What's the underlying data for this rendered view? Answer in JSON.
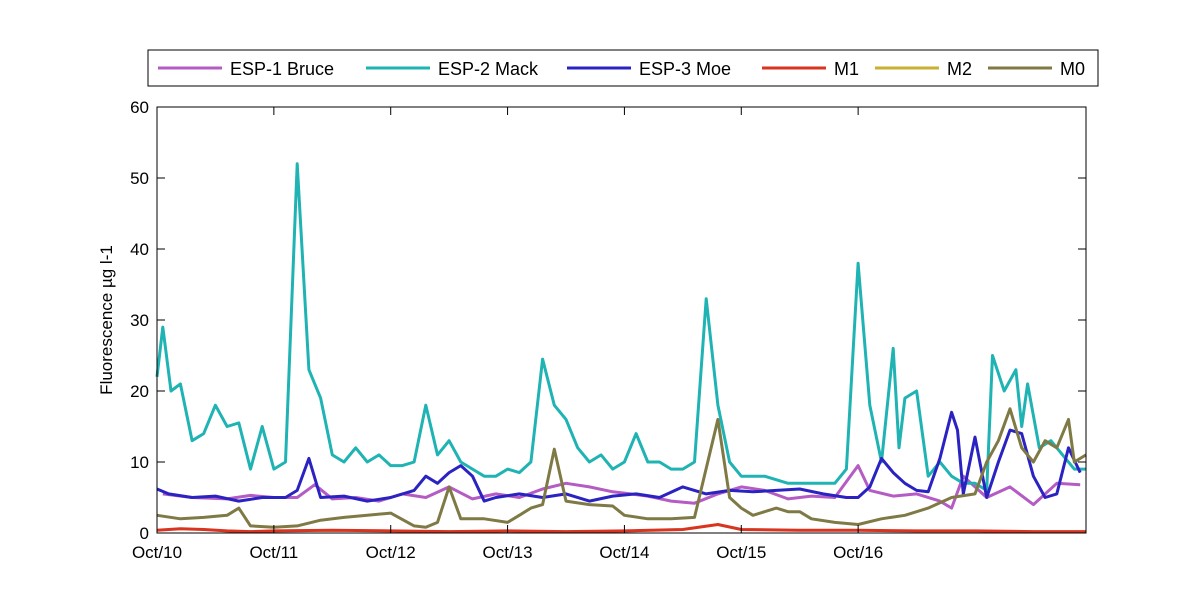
{
  "chart_data": {
    "type": "line",
    "title": "",
    "xlabel": "",
    "ylabel": "Fluorescence µg l-1",
    "x_unit": "days",
    "xlim": [
      10.0,
      17.95
    ],
    "ylim": [
      0,
      60
    ],
    "yticks": [
      0,
      10,
      20,
      30,
      40,
      50,
      60
    ],
    "xticks": [
      {
        "x": 10,
        "label": "Oct/10"
      },
      {
        "x": 11,
        "label": "Oct/11"
      },
      {
        "x": 12,
        "label": "Oct/12"
      },
      {
        "x": 13,
        "label": "Oct/13"
      },
      {
        "x": 14,
        "label": "Oct/14"
      },
      {
        "x": 15,
        "label": "Oct/15"
      },
      {
        "x": 16,
        "label": "Oct/16"
      }
    ],
    "grid": false,
    "legend": {
      "placement": "top",
      "orientation": "horizontal"
    },
    "series": [
      {
        "name": "ESP-1 Bruce",
        "color": "#b45cc4",
        "points": [
          [
            10.05,
            5.5
          ],
          [
            10.3,
            5.0
          ],
          [
            10.6,
            4.8
          ],
          [
            10.8,
            5.3
          ],
          [
            11.0,
            5.0
          ],
          [
            11.2,
            5.0
          ],
          [
            11.35,
            6.8
          ],
          [
            11.5,
            4.8
          ],
          [
            11.7,
            5.0
          ],
          [
            11.9,
            4.5
          ],
          [
            12.1,
            5.5
          ],
          [
            12.3,
            5.0
          ],
          [
            12.5,
            6.5
          ],
          [
            12.7,
            4.8
          ],
          [
            12.9,
            5.5
          ],
          [
            13.1,
            5.0
          ],
          [
            13.3,
            6.2
          ],
          [
            13.5,
            7.0
          ],
          [
            13.7,
            6.5
          ],
          [
            13.9,
            5.8
          ],
          [
            14.05,
            5.5
          ],
          [
            14.2,
            5.2
          ],
          [
            14.4,
            4.5
          ],
          [
            14.6,
            4.2
          ],
          [
            14.8,
            5.5
          ],
          [
            15.0,
            6.5
          ],
          [
            15.2,
            6.0
          ],
          [
            15.4,
            4.8
          ],
          [
            15.6,
            5.2
          ],
          [
            15.8,
            5.0
          ],
          [
            16.0,
            9.5
          ],
          [
            16.1,
            6.0
          ],
          [
            16.3,
            5.2
          ],
          [
            16.5,
            5.5
          ],
          [
            16.7,
            4.5
          ],
          [
            16.8,
            3.5
          ],
          [
            16.9,
            8.0
          ],
          [
            17.1,
            5.0
          ],
          [
            17.3,
            6.5
          ],
          [
            17.5,
            4.0
          ],
          [
            17.7,
            7.0
          ],
          [
            17.9,
            6.8
          ]
        ]
      },
      {
        "name": "ESP-2 Mack",
        "color": "#1fb3b3",
        "points": [
          [
            10.0,
            22
          ],
          [
            10.05,
            29
          ],
          [
            10.12,
            20
          ],
          [
            10.2,
            21
          ],
          [
            10.3,
            13
          ],
          [
            10.4,
            14
          ],
          [
            10.5,
            18
          ],
          [
            10.6,
            15
          ],
          [
            10.7,
            15.5
          ],
          [
            10.8,
            9
          ],
          [
            10.9,
            15
          ],
          [
            11.0,
            9
          ],
          [
            11.1,
            10
          ],
          [
            11.2,
            52
          ],
          [
            11.3,
            23
          ],
          [
            11.4,
            19
          ],
          [
            11.5,
            11
          ],
          [
            11.6,
            10
          ],
          [
            11.7,
            12
          ],
          [
            11.8,
            10
          ],
          [
            11.9,
            11
          ],
          [
            12.0,
            9.5
          ],
          [
            12.1,
            9.5
          ],
          [
            12.2,
            10
          ],
          [
            12.3,
            18
          ],
          [
            12.4,
            11
          ],
          [
            12.5,
            13
          ],
          [
            12.6,
            10
          ],
          [
            12.7,
            9
          ],
          [
            12.8,
            8
          ],
          [
            12.9,
            8
          ],
          [
            13.0,
            9
          ],
          [
            13.1,
            8.5
          ],
          [
            13.2,
            10
          ],
          [
            13.3,
            24.5
          ],
          [
            13.4,
            18
          ],
          [
            13.5,
            16
          ],
          [
            13.6,
            12
          ],
          [
            13.7,
            10
          ],
          [
            13.8,
            11
          ],
          [
            13.9,
            9
          ],
          [
            14.0,
            10
          ],
          [
            14.1,
            14
          ],
          [
            14.2,
            10
          ],
          [
            14.3,
            10
          ],
          [
            14.4,
            9
          ],
          [
            14.5,
            9
          ],
          [
            14.6,
            10
          ],
          [
            14.7,
            33
          ],
          [
            14.8,
            18
          ],
          [
            14.9,
            10
          ],
          [
            15.0,
            8
          ],
          [
            15.2,
            8
          ],
          [
            15.4,
            7
          ],
          [
            15.6,
            7
          ],
          [
            15.8,
            7
          ],
          [
            15.9,
            9
          ],
          [
            16.0,
            38
          ],
          [
            16.1,
            18
          ],
          [
            16.2,
            10
          ],
          [
            16.3,
            26
          ],
          [
            16.35,
            12
          ],
          [
            16.4,
            19
          ],
          [
            16.5,
            20
          ],
          [
            16.6,
            8
          ],
          [
            16.7,
            10
          ],
          [
            16.8,
            8
          ],
          [
            16.9,
            7
          ],
          [
            17.0,
            7
          ],
          [
            17.1,
            6
          ],
          [
            17.15,
            25
          ],
          [
            17.25,
            20
          ],
          [
            17.35,
            23
          ],
          [
            17.4,
            15
          ],
          [
            17.45,
            21
          ],
          [
            17.55,
            12
          ],
          [
            17.65,
            13
          ],
          [
            17.75,
            11
          ],
          [
            17.85,
            9
          ],
          [
            17.95,
            9
          ]
        ]
      },
      {
        "name": "ESP-3 Moe",
        "color": "#2a23c2",
        "points": [
          [
            10.0,
            6.2
          ],
          [
            10.1,
            5.5
          ],
          [
            10.3,
            5.0
          ],
          [
            10.5,
            5.2
          ],
          [
            10.7,
            4.5
          ],
          [
            10.9,
            5.0
          ],
          [
            11.1,
            5.0
          ],
          [
            11.2,
            6.0
          ],
          [
            11.3,
            10.5
          ],
          [
            11.4,
            5.0
          ],
          [
            11.6,
            5.2
          ],
          [
            11.8,
            4.5
          ],
          [
            12.0,
            5.0
          ],
          [
            12.2,
            6.0
          ],
          [
            12.3,
            8.0
          ],
          [
            12.4,
            7.0
          ],
          [
            12.5,
            8.5
          ],
          [
            12.6,
            9.5
          ],
          [
            12.7,
            8.0
          ],
          [
            12.8,
            4.5
          ],
          [
            12.9,
            5.0
          ],
          [
            13.1,
            5.5
          ],
          [
            13.3,
            5.0
          ],
          [
            13.5,
            5.5
          ],
          [
            13.7,
            4.5
          ],
          [
            13.9,
            5.2
          ],
          [
            14.1,
            5.5
          ],
          [
            14.3,
            5.0
          ],
          [
            14.5,
            6.5
          ],
          [
            14.7,
            5.5
          ],
          [
            14.9,
            6.0
          ],
          [
            15.1,
            5.8
          ],
          [
            15.3,
            6.0
          ],
          [
            15.5,
            6.2
          ],
          [
            15.7,
            5.5
          ],
          [
            15.9,
            5.0
          ],
          [
            16.0,
            5.0
          ],
          [
            16.1,
            6.5
          ],
          [
            16.2,
            10.5
          ],
          [
            16.3,
            8.5
          ],
          [
            16.4,
            7.0
          ],
          [
            16.5,
            6.0
          ],
          [
            16.6,
            5.8
          ],
          [
            16.7,
            10.5
          ],
          [
            16.8,
            17.0
          ],
          [
            16.85,
            14.5
          ],
          [
            16.9,
            5.5
          ],
          [
            17.0,
            13.5
          ],
          [
            17.1,
            5.0
          ],
          [
            17.2,
            10.0
          ],
          [
            17.3,
            14.5
          ],
          [
            17.4,
            14.0
          ],
          [
            17.5,
            8.0
          ],
          [
            17.6,
            5.0
          ],
          [
            17.7,
            5.5
          ],
          [
            17.8,
            12.0
          ],
          [
            17.9,
            8.5
          ]
        ]
      },
      {
        "name": "M1",
        "color": "#d8341f",
        "points": [
          [
            10.0,
            0.4
          ],
          [
            10.2,
            0.6
          ],
          [
            10.4,
            0.5
          ],
          [
            10.6,
            0.3
          ],
          [
            10.8,
            0.2
          ],
          [
            11.0,
            0.3
          ],
          [
            11.5,
            0.4
          ],
          [
            12.0,
            0.3
          ],
          [
            12.5,
            0.2
          ],
          [
            13.0,
            0.3
          ],
          [
            13.5,
            0.2
          ],
          [
            14.0,
            0.3
          ],
          [
            14.5,
            0.5
          ],
          [
            14.8,
            1.2
          ],
          [
            15.0,
            0.5
          ],
          [
            15.5,
            0.4
          ],
          [
            16.0,
            0.4
          ],
          [
            16.5,
            0.3
          ],
          [
            17.0,
            0.3
          ],
          [
            17.5,
            0.2
          ],
          [
            17.95,
            0.2
          ]
        ]
      },
      {
        "name": "M2",
        "color": "#c8b030",
        "points": []
      },
      {
        "name": "M0",
        "color": "#7f7a45",
        "points": [
          [
            10.0,
            2.5
          ],
          [
            10.2,
            2.0
          ],
          [
            10.4,
            2.2
          ],
          [
            10.6,
            2.5
          ],
          [
            10.7,
            3.5
          ],
          [
            10.8,
            1.0
          ],
          [
            11.0,
            0.8
          ],
          [
            11.2,
            1.0
          ],
          [
            11.4,
            1.8
          ],
          [
            11.6,
            2.2
          ],
          [
            11.8,
            2.5
          ],
          [
            12.0,
            2.8
          ],
          [
            12.2,
            1.0
          ],
          [
            12.3,
            0.8
          ],
          [
            12.4,
            1.5
          ],
          [
            12.5,
            6.5
          ],
          [
            12.6,
            2.0
          ],
          [
            12.8,
            2.0
          ],
          [
            13.0,
            1.5
          ],
          [
            13.1,
            2.5
          ],
          [
            13.2,
            3.5
          ],
          [
            13.3,
            4.0
          ],
          [
            13.4,
            11.8
          ],
          [
            13.5,
            4.5
          ],
          [
            13.7,
            4.0
          ],
          [
            13.9,
            3.8
          ],
          [
            14.0,
            2.5
          ],
          [
            14.2,
            2.0
          ],
          [
            14.4,
            2.0
          ],
          [
            14.6,
            2.2
          ],
          [
            14.8,
            16.0
          ],
          [
            14.9,
            5.0
          ],
          [
            15.0,
            3.5
          ],
          [
            15.1,
            2.5
          ],
          [
            15.2,
            3.0
          ],
          [
            15.3,
            3.5
          ],
          [
            15.4,
            3.0
          ],
          [
            15.5,
            3.0
          ],
          [
            15.6,
            2.0
          ],
          [
            15.8,
            1.5
          ],
          [
            16.0,
            1.2
          ],
          [
            16.2,
            2.0
          ],
          [
            16.4,
            2.5
          ],
          [
            16.6,
            3.5
          ],
          [
            16.8,
            5.0
          ],
          [
            17.0,
            5.5
          ],
          [
            17.1,
            10.0
          ],
          [
            17.2,
            13.0
          ],
          [
            17.3,
            17.5
          ],
          [
            17.4,
            12.0
          ],
          [
            17.5,
            10.0
          ],
          [
            17.6,
            13.0
          ],
          [
            17.7,
            12.0
          ],
          [
            17.8,
            16.0
          ],
          [
            17.85,
            10.0
          ],
          [
            17.95,
            11.0
          ]
        ]
      }
    ]
  }
}
